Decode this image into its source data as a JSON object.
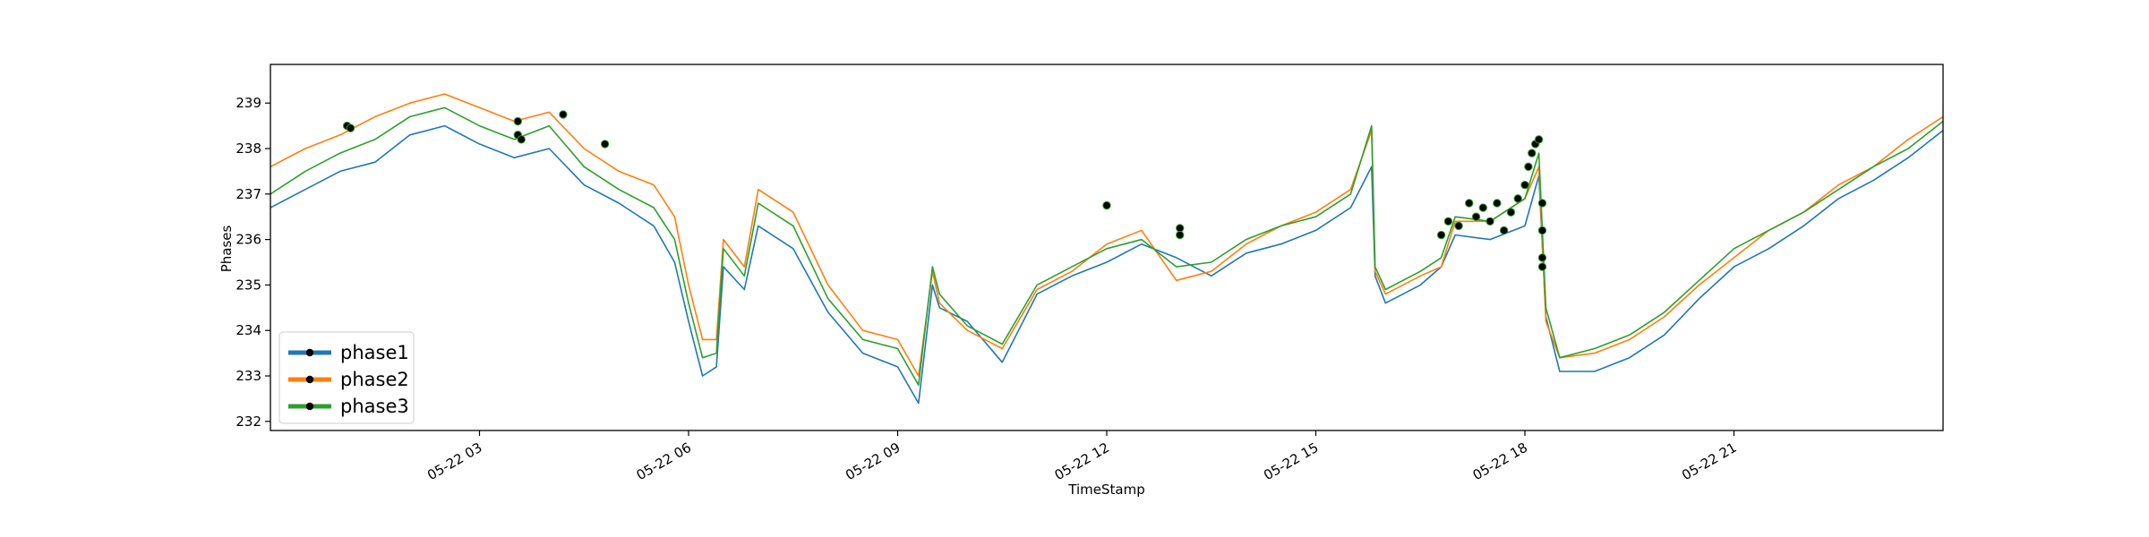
{
  "chart_data": {
    "type": "line",
    "title": "",
    "xlabel": "TimeStamp",
    "ylabel": "Phases",
    "x_unit": "hours",
    "xlim": [
      0,
      24
    ],
    "ylim": [
      231.8,
      239.85
    ],
    "x_ticks": [
      {
        "x": 3,
        "label": "05-22 03"
      },
      {
        "x": 6,
        "label": "05-22 06"
      },
      {
        "x": 9,
        "label": "05-22 09"
      },
      {
        "x": 12,
        "label": "05-22 12"
      },
      {
        "x": 15,
        "label": "05-22 15"
      },
      {
        "x": 18,
        "label": "05-22 18"
      },
      {
        "x": 21,
        "label": "05-22 21"
      }
    ],
    "y_ticks": [
      232,
      233,
      234,
      235,
      236,
      237,
      238,
      239
    ],
    "grid": false,
    "legend_position": "lower-left",
    "series": [
      {
        "name": "phase1",
        "color": "#1f77b4",
        "x": [
          0,
          0.5,
          1,
          1.5,
          2,
          2.5,
          3,
          3.5,
          4,
          4.5,
          5,
          5.5,
          5.8,
          6,
          6.2,
          6.4,
          6.5,
          6.8,
          7,
          7.5,
          8,
          8.5,
          9,
          9.3,
          9.5,
          9.6,
          10,
          10.5,
          11,
          11.5,
          12,
          12.5,
          13,
          13.5,
          14,
          14.5,
          15,
          15.5,
          15.8,
          15.85,
          16,
          16.5,
          16.8,
          17,
          17.5,
          18,
          18.2,
          18.3,
          18.5,
          19,
          19.5,
          20,
          20.5,
          21,
          21.5,
          22,
          22.5,
          23,
          23.5,
          24
        ],
        "y": [
          236.7,
          237.1,
          237.5,
          237.7,
          238.3,
          238.5,
          238.1,
          237.8,
          238.0,
          237.2,
          236.8,
          236.3,
          235.5,
          234.2,
          233.0,
          233.2,
          235.4,
          234.9,
          236.3,
          235.8,
          234.4,
          233.5,
          233.2,
          232.4,
          235.0,
          234.5,
          234.2,
          233.3,
          234.8,
          235.2,
          235.5,
          235.9,
          235.6,
          235.2,
          235.7,
          235.9,
          236.2,
          236.7,
          237.6,
          235.2,
          234.6,
          235.0,
          235.4,
          236.1,
          236.0,
          236.3,
          237.4,
          234.3,
          233.1,
          233.1,
          233.4,
          233.9,
          234.7,
          235.4,
          235.8,
          236.3,
          236.9,
          237.3,
          237.8,
          238.4
        ]
      },
      {
        "name": "phase2",
        "color": "#ff7f0e",
        "x": [
          0,
          0.5,
          1,
          1.5,
          2,
          2.5,
          3,
          3.5,
          4,
          4.5,
          5,
          5.5,
          5.8,
          6,
          6.2,
          6.4,
          6.5,
          6.8,
          7,
          7.5,
          8,
          8.5,
          9,
          9.3,
          9.5,
          9.6,
          10,
          10.5,
          11,
          11.5,
          12,
          12.5,
          13,
          13.5,
          14,
          14.5,
          15,
          15.5,
          15.8,
          15.85,
          16,
          16.5,
          16.8,
          17,
          17.5,
          18,
          18.2,
          18.3,
          18.5,
          19,
          19.5,
          20,
          20.5,
          21,
          21.5,
          22,
          22.5,
          23,
          23.5,
          24
        ],
        "y": [
          237.6,
          238.0,
          238.3,
          238.7,
          239.0,
          239.2,
          238.9,
          238.6,
          238.8,
          238.0,
          237.5,
          237.2,
          236.5,
          235.0,
          233.8,
          233.8,
          236.0,
          235.4,
          237.1,
          236.6,
          235.0,
          234.0,
          233.8,
          233.0,
          235.3,
          234.6,
          234.0,
          233.6,
          234.9,
          235.3,
          235.9,
          236.2,
          235.1,
          235.3,
          235.9,
          236.3,
          236.6,
          237.1,
          238.4,
          235.3,
          234.8,
          235.2,
          235.4,
          236.4,
          236.4,
          236.9,
          237.6,
          234.2,
          233.4,
          233.5,
          233.8,
          234.3,
          235.0,
          235.6,
          236.2,
          236.6,
          237.2,
          237.6,
          238.2,
          238.7
        ]
      },
      {
        "name": "phase3",
        "color": "#2ca02c",
        "x": [
          0,
          0.5,
          1,
          1.5,
          2,
          2.5,
          3,
          3.5,
          4,
          4.5,
          5,
          5.5,
          5.8,
          6,
          6.2,
          6.4,
          6.5,
          6.8,
          7,
          7.5,
          8,
          8.5,
          9,
          9.3,
          9.5,
          9.6,
          10,
          10.5,
          11,
          11.5,
          12,
          12.5,
          13,
          13.5,
          14,
          14.5,
          15,
          15.5,
          15.8,
          15.85,
          16,
          16.5,
          16.8,
          17,
          17.5,
          18,
          18.2,
          18.3,
          18.5,
          19,
          19.5,
          20,
          20.5,
          21,
          21.5,
          22,
          22.5,
          23,
          23.5,
          24
        ],
        "y": [
          237.0,
          237.5,
          237.9,
          238.2,
          238.7,
          238.9,
          238.5,
          238.2,
          238.5,
          237.6,
          237.1,
          236.7,
          236.0,
          234.6,
          233.4,
          233.5,
          235.8,
          235.2,
          236.8,
          236.3,
          234.7,
          233.8,
          233.6,
          232.8,
          235.4,
          234.8,
          234.1,
          233.7,
          235.0,
          235.4,
          235.8,
          236.0,
          235.4,
          235.5,
          236.0,
          236.3,
          236.5,
          237.0,
          238.5,
          235.4,
          234.9,
          235.3,
          235.6,
          236.5,
          236.4,
          236.9,
          237.9,
          234.5,
          233.4,
          233.6,
          233.9,
          234.4,
          235.1,
          235.8,
          236.2,
          236.6,
          237.1,
          237.6,
          238.0,
          238.6
        ]
      }
    ],
    "markers": {
      "color": "#000000",
      "points": [
        {
          "x": 1.1,
          "y": 238.5
        },
        {
          "x": 1.15,
          "y": 238.45
        },
        {
          "x": 3.55,
          "y": 238.6
        },
        {
          "x": 3.55,
          "y": 238.3
        },
        {
          "x": 3.6,
          "y": 238.2
        },
        {
          "x": 4.2,
          "y": 238.75
        },
        {
          "x": 4.8,
          "y": 238.1
        },
        {
          "x": 12.0,
          "y": 236.75
        },
        {
          "x": 13.05,
          "y": 236.25
        },
        {
          "x": 13.05,
          "y": 236.1
        },
        {
          "x": 16.8,
          "y": 236.1
        },
        {
          "x": 16.9,
          "y": 236.4
        },
        {
          "x": 17.05,
          "y": 236.3
        },
        {
          "x": 17.2,
          "y": 236.8
        },
        {
          "x": 17.3,
          "y": 236.5
        },
        {
          "x": 17.4,
          "y": 236.7
        },
        {
          "x": 17.5,
          "y": 236.4
        },
        {
          "x": 17.6,
          "y": 236.8
        },
        {
          "x": 17.7,
          "y": 236.2
        },
        {
          "x": 17.8,
          "y": 236.6
        },
        {
          "x": 17.9,
          "y": 236.9
        },
        {
          "x": 18.0,
          "y": 237.2
        },
        {
          "x": 18.05,
          "y": 237.6
        },
        {
          "x": 18.1,
          "y": 237.9
        },
        {
          "x": 18.15,
          "y": 238.1
        },
        {
          "x": 18.2,
          "y": 238.2
        },
        {
          "x": 18.25,
          "y": 236.8
        },
        {
          "x": 18.25,
          "y": 236.2
        },
        {
          "x": 18.25,
          "y": 235.6
        },
        {
          "x": 18.25,
          "y": 235.4
        }
      ]
    }
  }
}
